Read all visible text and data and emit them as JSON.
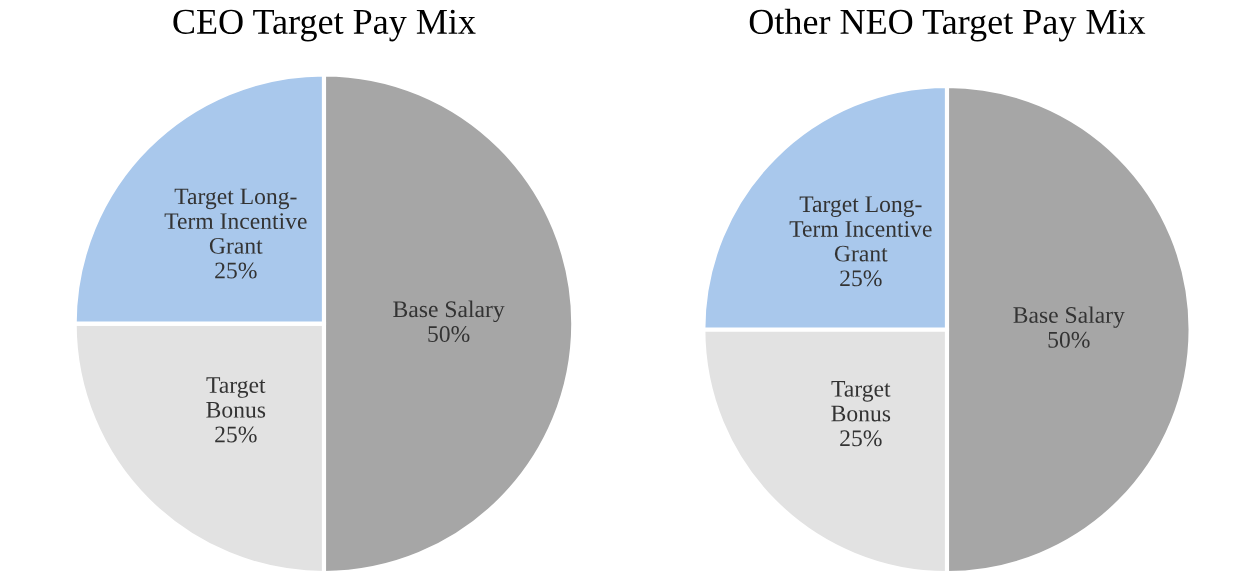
{
  "chart_data": [
    {
      "type": "pie",
      "title": "CEO Target Pay Mix",
      "categories": [
        "Base Salary",
        "Target\nBonus",
        "Target Long-\nTerm Incentive\nGrant"
      ],
      "values": [
        50,
        25,
        25
      ],
      "colors": [
        "#a6a6a6",
        "#e2e2e2",
        "#a9c8ec"
      ],
      "value_labels": [
        "50%",
        "25%",
        "25%"
      ]
    },
    {
      "type": "pie",
      "title": "Other NEO Target Pay Mix",
      "categories": [
        "Base Salary",
        "Target\nBonus",
        "Target Long-\nTerm Incentive\nGrant"
      ],
      "values": [
        50,
        25,
        25
      ],
      "colors": [
        "#a6a6a6",
        "#e2e2e2",
        "#a9c8ec"
      ],
      "value_labels": [
        "50%",
        "25%",
        "25%"
      ]
    }
  ]
}
